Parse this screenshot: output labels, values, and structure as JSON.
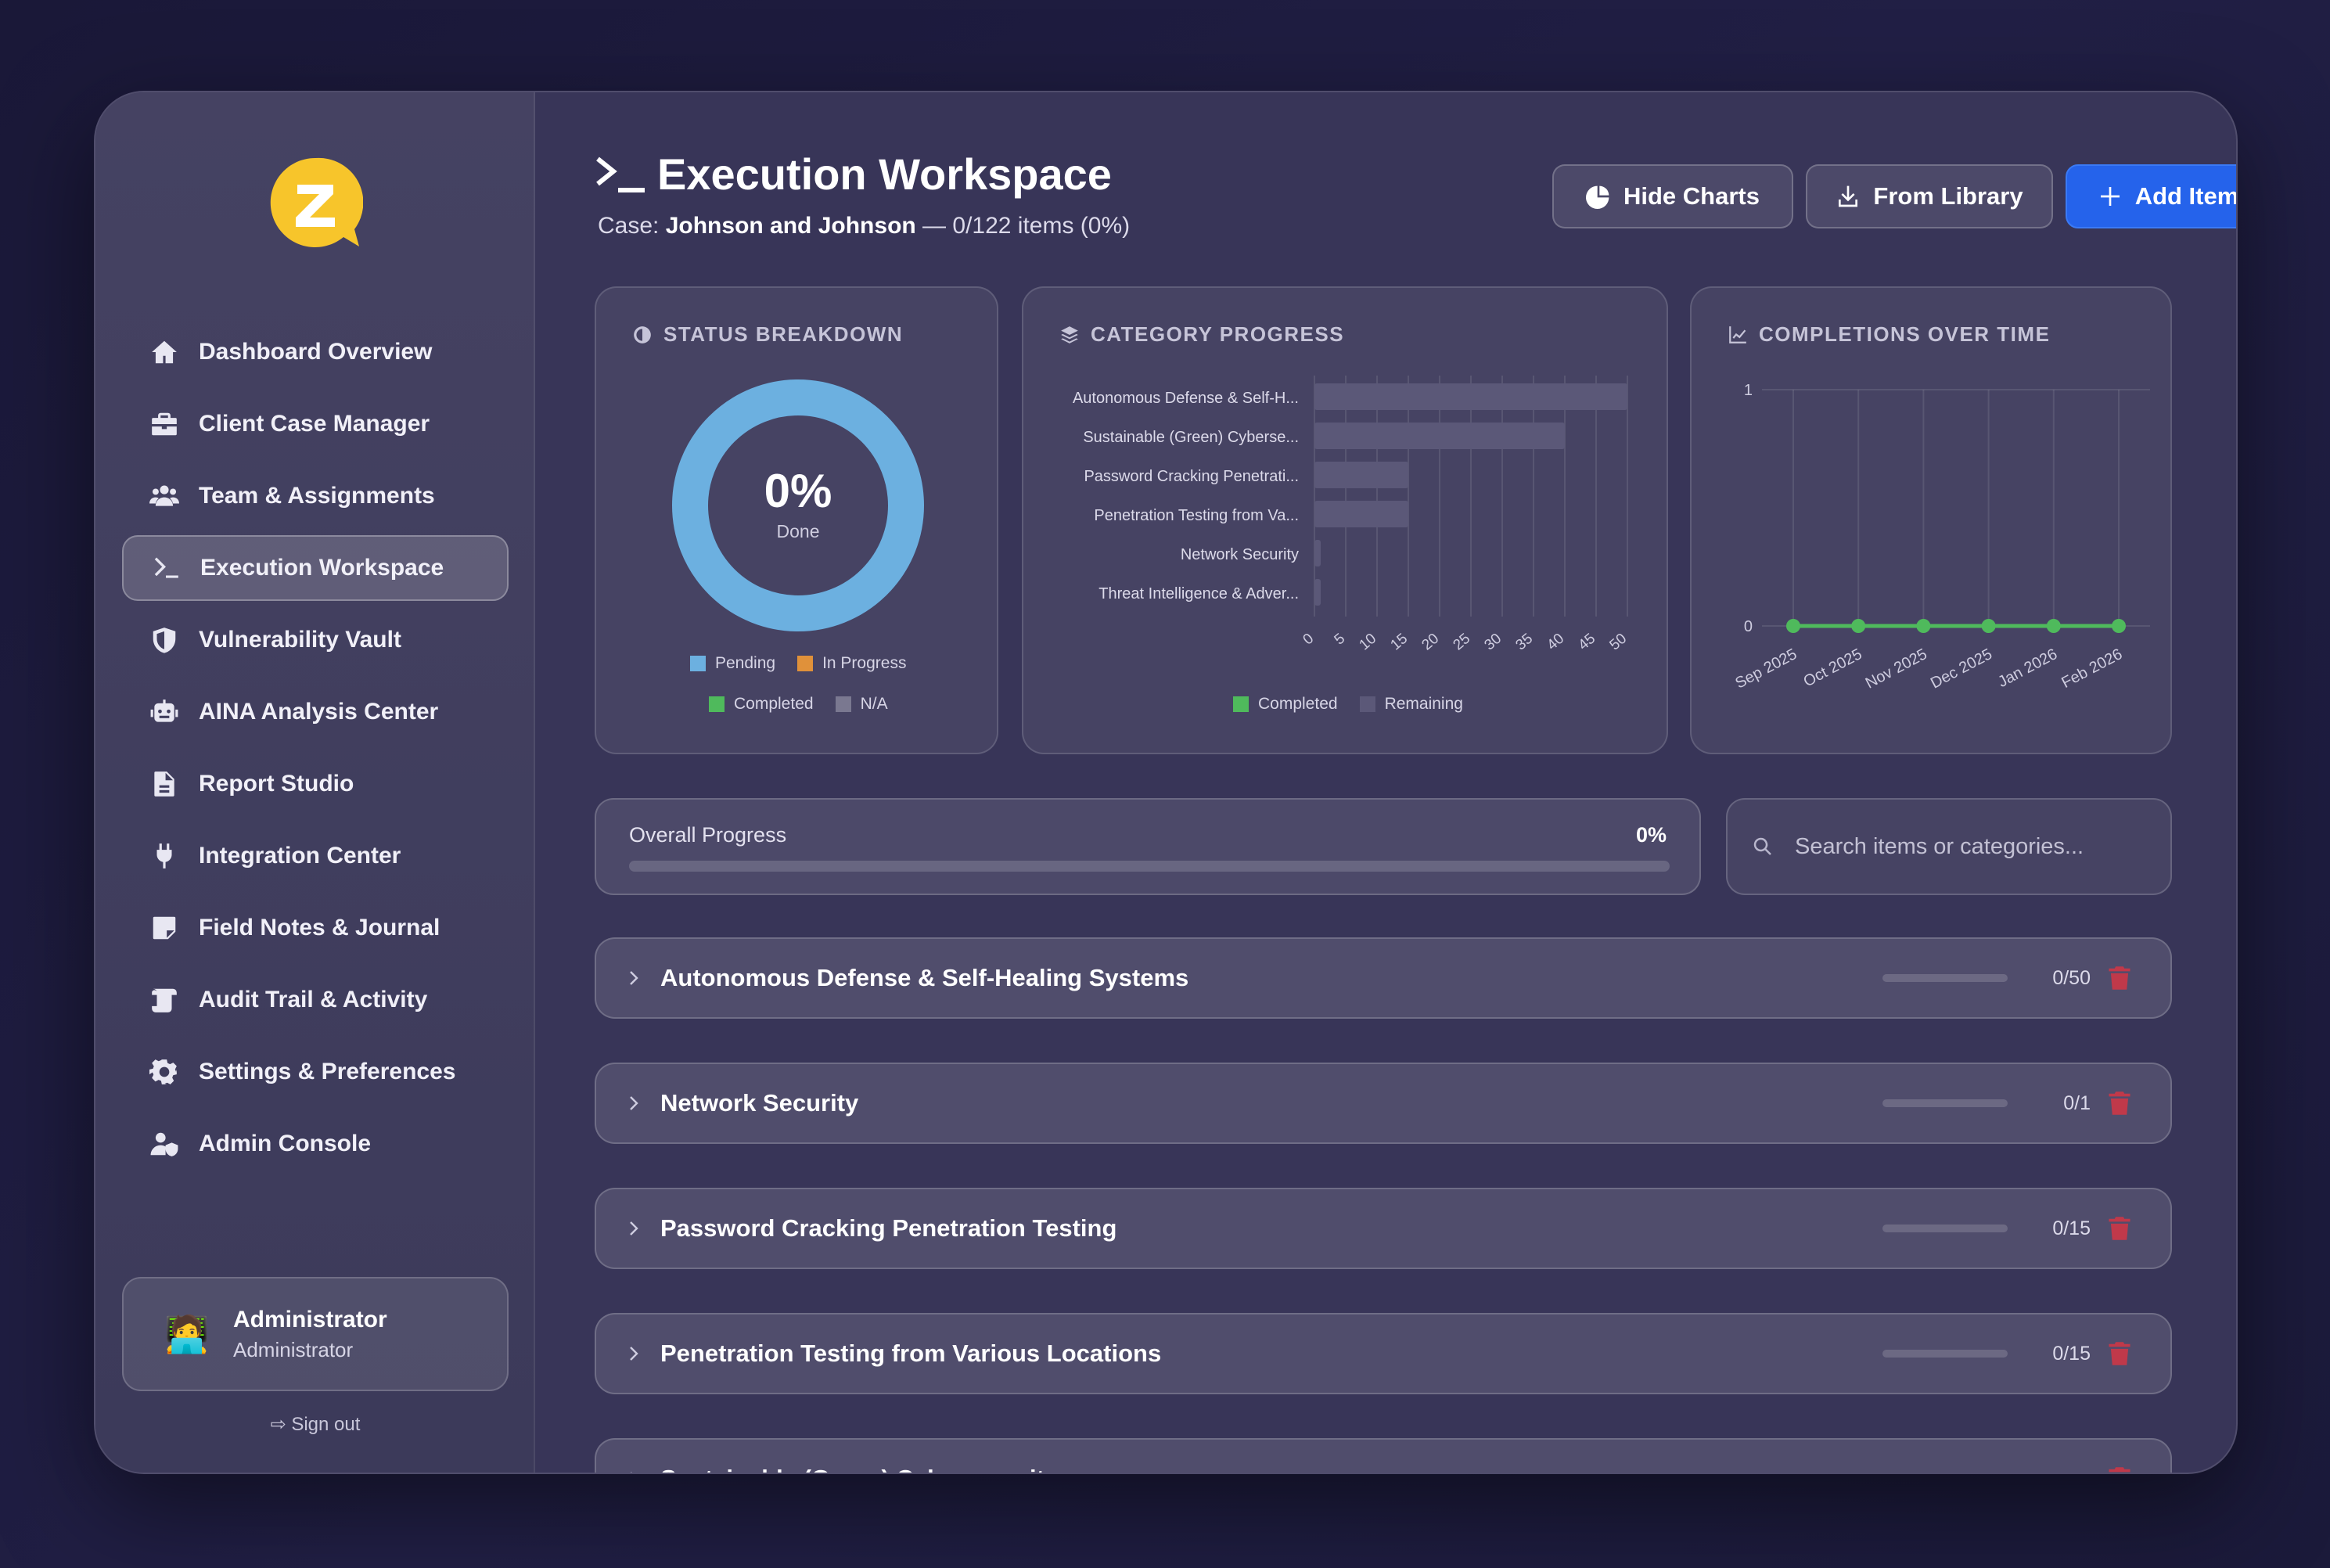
{
  "sidebar": {
    "items": [
      {
        "label": "Dashboard Overview",
        "icon": "home-icon",
        "active": false
      },
      {
        "label": "Client Case Manager",
        "icon": "briefcase-icon",
        "active": false
      },
      {
        "label": "Team & Assignments",
        "icon": "users-icon",
        "active": false
      },
      {
        "label": "Execution Workspace",
        "icon": "terminal-icon",
        "active": true
      },
      {
        "label": "Vulnerability Vault",
        "icon": "shield-icon",
        "active": false
      },
      {
        "label": "AINA Analysis Center",
        "icon": "robot-icon",
        "active": false
      },
      {
        "label": "Report Studio",
        "icon": "file-icon",
        "active": false
      },
      {
        "label": "Integration Center",
        "icon": "plug-icon",
        "active": false
      },
      {
        "label": "Field Notes & Journal",
        "icon": "note-icon",
        "active": false
      },
      {
        "label": "Audit Trail & Activity",
        "icon": "scroll-icon",
        "active": false
      },
      {
        "label": "Settings & Preferences",
        "icon": "gear-icon",
        "active": false
      },
      {
        "label": "Admin Console",
        "icon": "user-shield-icon",
        "active": false
      }
    ],
    "user": {
      "name": "Administrator",
      "role": "Administrator",
      "avatar": "🧑‍💻"
    },
    "signout_label": "Sign out"
  },
  "header": {
    "title": "Execution Workspace",
    "case_prefix": "Case: ",
    "case_name": "Johnson and Johnson",
    "case_suffix": " — 0/122 items (0%)",
    "buttons": {
      "hide_charts": "Hide Charts",
      "from_library": "From Library",
      "add_item": "Add Item"
    }
  },
  "status_card": {
    "title": "STATUS BREAKDOWN",
    "percent": "0%",
    "done_label": "Done",
    "legend": [
      "Pending",
      "In Progress",
      "Completed",
      "N/A"
    ]
  },
  "category_card": {
    "title": "CATEGORY PROGRESS",
    "legend": [
      "Completed",
      "Remaining"
    ]
  },
  "time_card": {
    "title": "COMPLETIONS OVER TIME"
  },
  "overall": {
    "label": "Overall Progress",
    "value": "0%",
    "fraction": 0
  },
  "search": {
    "placeholder": "Search items or categories..."
  },
  "categories": [
    {
      "name": "Autonomous Defense & Self-Healing Systems",
      "count": "0/50"
    },
    {
      "name": "Network Security",
      "count": "0/1"
    },
    {
      "name": "Password Cracking Penetration Testing",
      "count": "0/15"
    },
    {
      "name": "Penetration Testing from Various Locations",
      "count": "0/15"
    },
    {
      "name": "Sustainable (Green) Cybersecurity",
      "count": ""
    }
  ],
  "colors": {
    "pending": "#6cb0e0",
    "in_progress": "#e0913a",
    "completed": "#4fba5c",
    "na": "#7a7890",
    "remaining": "#5b5878",
    "primary": "#2563eb",
    "danger": "#c0394a"
  },
  "chart_data": [
    {
      "type": "pie",
      "title": "STATUS BREAKDOWN",
      "categories": [
        "Pending",
        "In Progress",
        "Completed",
        "N/A"
      ],
      "values": [
        122,
        0,
        0,
        0
      ],
      "center_text": "0%"
    },
    {
      "type": "bar",
      "orientation": "horizontal",
      "stacked": true,
      "title": "CATEGORY PROGRESS",
      "categories": [
        "Autonomous Defense & Self-H...",
        "Sustainable (Green) Cyberse...",
        "Password Cracking Penetrati...",
        "Penetration Testing from Va...",
        "Network Security",
        "Threat Intelligence & Adver..."
      ],
      "series": [
        {
          "name": "Completed",
          "values": [
            0,
            0,
            0,
            0,
            0,
            0
          ]
        },
        {
          "name": "Remaining",
          "values": [
            50,
            40,
            15,
            15,
            1,
            1
          ]
        }
      ],
      "xlim": [
        0,
        50
      ],
      "xticks": [
        0,
        5,
        10,
        15,
        20,
        25,
        30,
        35,
        40,
        45,
        50
      ],
      "legend": "bottom"
    },
    {
      "type": "line",
      "title": "COMPLETIONS OVER TIME",
      "x": [
        "Sep 2025",
        "Oct 2025",
        "Nov 2025",
        "Dec 2025",
        "Jan 2026",
        "Feb 2026"
      ],
      "series": [
        {
          "values": [
            0,
            0,
            0,
            0,
            0,
            0
          ]
        }
      ],
      "ylim": [
        0,
        1
      ],
      "yticks": [
        0,
        1
      ]
    }
  ]
}
